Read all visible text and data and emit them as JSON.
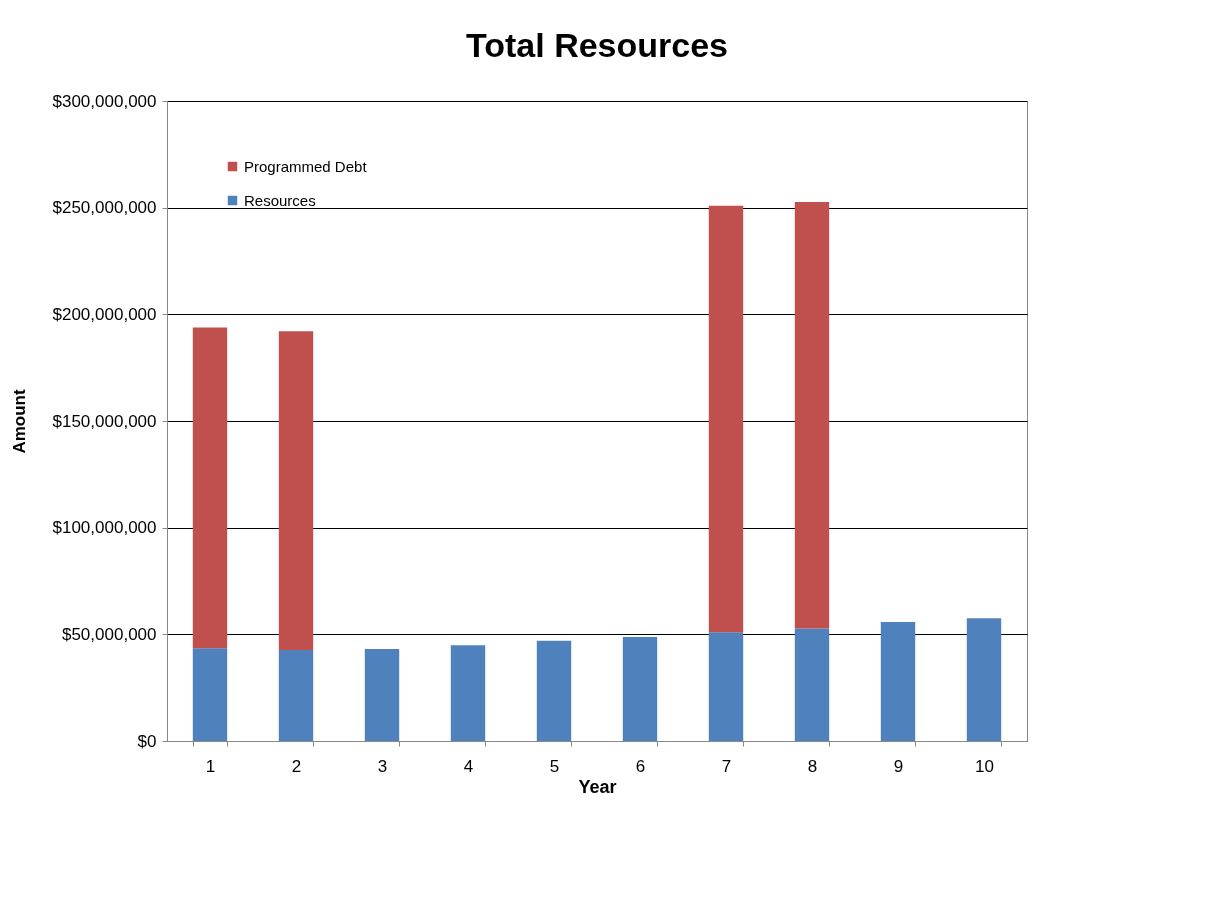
{
  "chart_data": {
    "type": "bar",
    "title": "Total Resources",
    "xlabel": "Year",
    "ylabel": "Amount",
    "categories": [
      "1",
      "2",
      "3",
      "4",
      "5",
      "6",
      "7",
      "8",
      "9",
      "10"
    ],
    "stacked": true,
    "series": [
      {
        "name": "Resources",
        "color": "#4f81bd",
        "values": [
          43500000,
          42700000,
          43100000,
          44900000,
          47000000,
          48800000,
          51000000,
          52700000,
          55800000,
          57500000
        ]
      },
      {
        "name": "Programmed Debt",
        "color": "#c0504d",
        "values": [
          150300000,
          149400000,
          null,
          null,
          null,
          null,
          199900000,
          199900000,
          null,
          null
        ]
      }
    ],
    "ylim": [
      0,
      300000000
    ],
    "yticks": [
      {
        "value": 0,
        "label": "$0"
      },
      {
        "value": 50000000,
        "label": "$50,000,000"
      },
      {
        "value": 100000000,
        "label": "$100,000,000"
      },
      {
        "value": 150000000,
        "label": "$150,000,000"
      },
      {
        "value": 200000000,
        "label": "$200,000,000"
      },
      {
        "value": 250000000,
        "label": "$250,000,000"
      },
      {
        "value": 300000000,
        "label": "$300,000,000"
      }
    ],
    "grid": "y",
    "legend": "top left"
  }
}
